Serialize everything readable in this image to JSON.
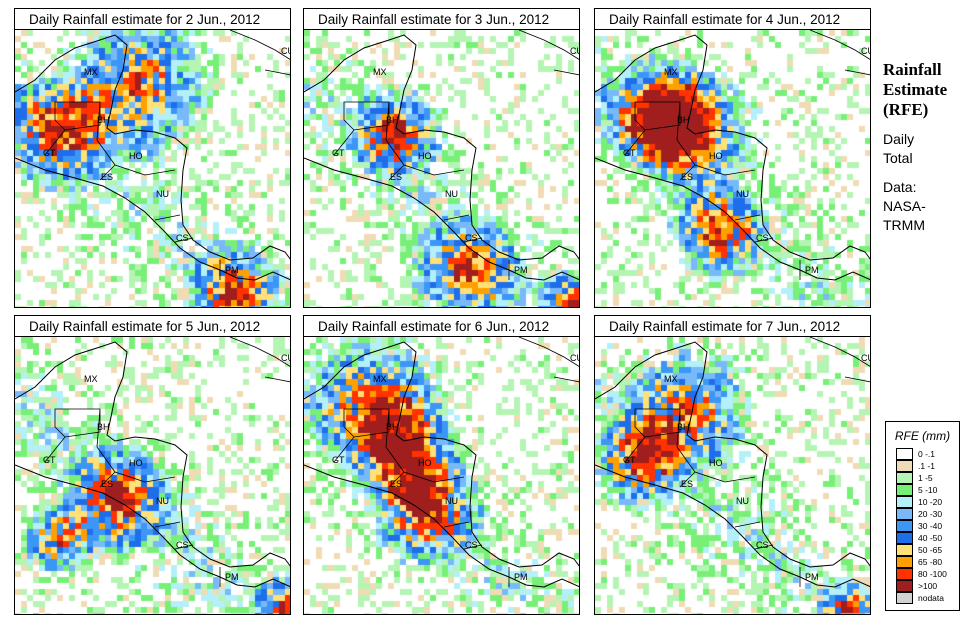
{
  "panels": [
    {
      "title": "Daily Rainfall estimate for  2 Jun., 2012"
    },
    {
      "title": "Daily Rainfall estimate for  3 Jun., 2012"
    },
    {
      "title": "Daily Rainfall estimate for  4 Jun., 2012"
    },
    {
      "title": "Daily Rainfall estimate for  5 Jun., 2012"
    },
    {
      "title": "Daily Rainfall estimate for  6 Jun., 2012"
    },
    {
      "title": "Daily Rainfall estimate for  7 Jun., 2012"
    }
  ],
  "country_labels": [
    "MX",
    "CU",
    "BH",
    "GT",
    "HO",
    "ES",
    "NU",
    "CS",
    "PM"
  ],
  "side": {
    "title1": "Rainfall",
    "title2": "Estimate",
    "title3": "(RFE)",
    "daily1": "Daily",
    "daily2": "Total",
    "data1": "Data:",
    "data2": "NASA-",
    "data3": "TRMM"
  },
  "legend": {
    "title": "RFE (mm)",
    "items": [
      {
        "label": "0 -.1",
        "color": "#ffffff"
      },
      {
        "label": ".1 -1",
        "color": "#f0dcb4"
      },
      {
        "label": "1 -5",
        "color": "#b4f5b4"
      },
      {
        "label": "5 -10",
        "color": "#78f078"
      },
      {
        "label": "10 -20",
        "color": "#b4f0fa"
      },
      {
        "label": "20 -30",
        "color": "#78b9fa"
      },
      {
        "label": "30 -40",
        "color": "#3c96f5"
      },
      {
        "label": "40 -50",
        "color": "#1e6eeb"
      },
      {
        "label": "50 -65",
        "color": "#ffe178"
      },
      {
        "label": "65 -80",
        "color": "#ffa000"
      },
      {
        "label": "80 -100",
        "color": "#ff3200"
      },
      {
        "label": ">100",
        "color": "#a01e1e"
      },
      {
        "label": "nodata",
        "color": "#d2d2d2"
      }
    ]
  }
}
